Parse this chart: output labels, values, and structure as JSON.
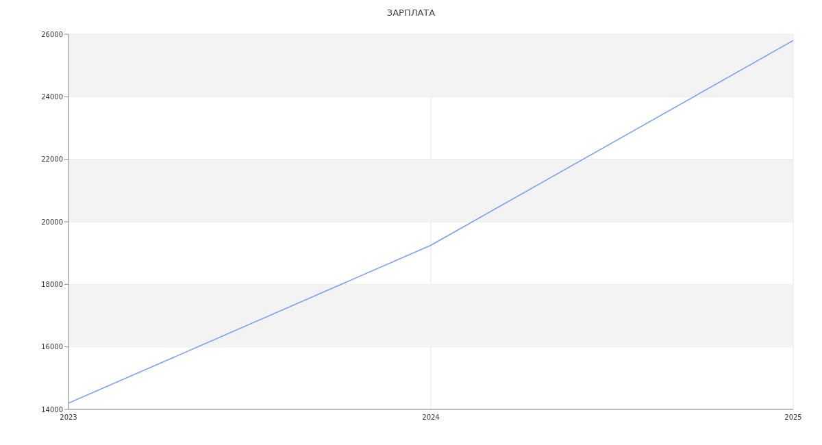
{
  "chart_data": {
    "type": "line",
    "title": "ЗАРПЛАТА",
    "x": [
      2023,
      2024,
      2025
    ],
    "series": [
      {
        "color": "#769ef5",
        "values": [
          14200,
          19250,
          25800
        ]
      }
    ],
    "xlim": [
      2023,
      2025
    ],
    "xticks": [
      2023,
      2024,
      2025
    ],
    "ylim": [
      14000,
      26000
    ],
    "yticks": [
      14000,
      16000,
      18000,
      20000,
      22000,
      24000,
      26000
    ],
    "grid": true,
    "marker": "none",
    "line_style": "solid",
    "bands": [
      {
        "axis": "y",
        "from": 16000,
        "to": 18000,
        "color": "#f3f3f3"
      },
      {
        "axis": "y",
        "from": 20000,
        "to": 22000,
        "color": "#f3f3f3"
      },
      {
        "axis": "y",
        "from": 24000,
        "to": 26000,
        "color": "#f3f3f3"
      }
    ]
  }
}
